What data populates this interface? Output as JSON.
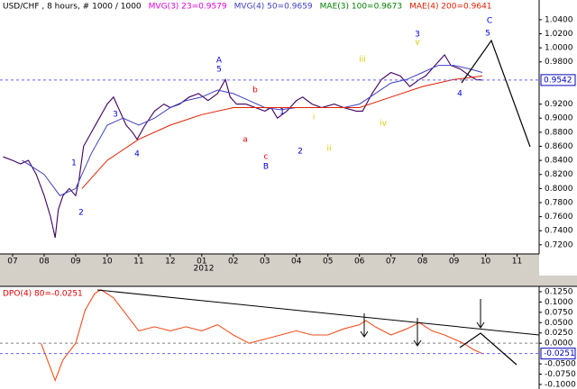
{
  "chart_data": [
    {
      "type": "line",
      "title": "USD/CHF , 8 hours, # 1000 / 1000",
      "indicators": [
        {
          "name": "MVG(3) 23=0.9579",
          "color": "#e000e0"
        },
        {
          "name": "MAE(3) 100=0.9673",
          "color": "#008000"
        }
      ],
      "xlim": [
        -0.4,
        16.7
      ],
      "xticks": [
        {
          "value": 0,
          "label": "07"
        },
        {
          "value": 1,
          "label": "08"
        },
        {
          "value": 2,
          "label": "09"
        },
        {
          "value": 3,
          "label": "10"
        },
        {
          "value": 4,
          "label": "11"
        },
        {
          "value": 5,
          "label": "12"
        },
        {
          "value": 6,
          "label": "01"
        },
        {
          "value": 7,
          "label": "02"
        },
        {
          "value": 8,
          "label": "03"
        },
        {
          "value": 9,
          "label": "04"
        },
        {
          "value": 10,
          "label": "05"
        },
        {
          "value": 11,
          "label": "06"
        },
        {
          "value": 12,
          "label": "07"
        },
        {
          "value": 13,
          "label": "08"
        },
        {
          "value": 14,
          "label": "09"
        },
        {
          "value": 15,
          "label": "10"
        },
        {
          "value": 16,
          "label": "11"
        }
      ],
      "year_label": "2012",
      "ylim": [
        0.707,
        1.068
      ],
      "yticks": [
        {
          "value": 1.04,
          "label": "1.0400"
        },
        {
          "value": 1.02,
          "label": "1.0200"
        },
        {
          "value": 1.0,
          "label": "1.0000"
        },
        {
          "value": 0.98,
          "label": "0.9800"
        },
        {
          "value": 0.92,
          "label": "0.9200"
        },
        {
          "value": 0.9,
          "label": "0.9000"
        },
        {
          "value": 0.88,
          "label": "0.8800"
        },
        {
          "value": 0.86,
          "label": "0.8600"
        },
        {
          "value": 0.84,
          "label": "0.8400"
        },
        {
          "value": 0.82,
          "label": "0.8200"
        },
        {
          "value": 0.8,
          "label": "0.8000"
        },
        {
          "value": 0.78,
          "label": "0.7800"
        },
        {
          "value": 0.76,
          "label": "0.7600"
        },
        {
          "value": 0.74,
          "label": "0.7400"
        },
        {
          "value": 0.72,
          "label": "0.7200"
        }
      ],
      "current": {
        "value": 0.9542,
        "label": "0.9542"
      },
      "series": [
        {
          "color": "#400060",
          "x": [
            -0.3,
            0,
            0.25,
            0.5,
            0.75,
            1.0,
            1.2,
            1.35,
            1.45,
            1.6,
            1.8,
            2.0,
            2.1,
            2.25,
            2.5,
            2.75,
            3.0,
            3.2,
            3.4,
            3.6,
            3.8,
            3.95,
            4.2,
            4.5,
            4.8,
            5.0,
            5.3,
            5.6,
            5.9,
            6.2,
            6.5,
            6.75,
            6.9,
            7.1,
            7.4,
            7.7,
            8.0,
            8.2,
            8.4,
            8.7,
            9.0,
            9.2,
            9.5,
            9.8,
            10.2,
            10.5,
            10.9,
            11.1,
            11.4,
            11.7,
            12.0,
            12.3,
            12.6,
            12.9,
            13.1,
            13.4,
            13.7,
            13.9,
            14.2,
            14.5,
            14.7,
            14.9
          ],
          "values": [
            0.845,
            0.84,
            0.835,
            0.84,
            0.82,
            0.79,
            0.76,
            0.73,
            0.77,
            0.79,
            0.8,
            0.79,
            0.81,
            0.86,
            0.88,
            0.9,
            0.92,
            0.93,
            0.91,
            0.89,
            0.88,
            0.87,
            0.89,
            0.91,
            0.92,
            0.915,
            0.92,
            0.93,
            0.935,
            0.925,
            0.935,
            0.955,
            0.93,
            0.92,
            0.92,
            0.915,
            0.91,
            0.915,
            0.9,
            0.91,
            0.925,
            0.93,
            0.92,
            0.915,
            0.92,
            0.915,
            0.91,
            0.91,
            0.935,
            0.955,
            0.965,
            0.96,
            0.945,
            0.955,
            0.96,
            0.975,
            0.99,
            0.975,
            0.97,
            0.96,
            0.955,
            0.9542
          ]
        },
        {
          "name": "MVG(4) 50=0.9659",
          "color": "#4040c0",
          "x": [
            0.3,
            1,
            1.5,
            2,
            2.5,
            3,
            3.5,
            4,
            4.5,
            5,
            5.5,
            6,
            6.5,
            7,
            7.5,
            8,
            8.5,
            9,
            9.5,
            10,
            10.5,
            11,
            11.5,
            12,
            12.5,
            13,
            13.5,
            14,
            14.5,
            14.9
          ],
          "values": [
            0.84,
            0.82,
            0.79,
            0.8,
            0.85,
            0.89,
            0.9,
            0.89,
            0.9,
            0.915,
            0.925,
            0.93,
            0.94,
            0.935,
            0.925,
            0.915,
            0.912,
            0.915,
            0.915,
            0.915,
            0.915,
            0.92,
            0.935,
            0.95,
            0.955,
            0.965,
            0.975,
            0.975,
            0.97,
            0.965
          ]
        },
        {
          "name": "MAE(4) 200=0.9641",
          "color": "#e02000",
          "x": [
            2.2,
            3,
            4,
            5,
            6,
            7,
            8,
            9,
            10,
            11,
            12,
            13,
            14,
            14.9
          ],
          "values": [
            0.8,
            0.84,
            0.87,
            0.89,
            0.905,
            0.915,
            0.915,
            0.915,
            0.915,
            0.915,
            0.93,
            0.945,
            0.955,
            0.96
          ]
        }
      ],
      "annotations": [
        "1",
        "2",
        "3",
        "4",
        "A",
        "5",
        "a",
        "b",
        "c",
        "B",
        "1",
        "2",
        "i",
        "ii",
        "iii",
        "iv",
        "3",
        "v",
        "4",
        "C",
        "5"
      ]
    },
    {
      "type": "line",
      "title": "DPO(4) 80=-0.0251",
      "xlim": [
        -0.4,
        16.7
      ],
      "ylim": [
        -0.111,
        0.138
      ],
      "yticks": [
        {
          "value": 0.125,
          "label": "0.1250"
        },
        {
          "value": 0.1,
          "label": "0.1000"
        },
        {
          "value": 0.075,
          "label": "0.0750"
        },
        {
          "value": 0.05,
          "label": "0.0500"
        },
        {
          "value": 0.025,
          "label": "0.0250"
        },
        {
          "value": 0,
          "label": "0.0000"
        },
        {
          "value": -0.05,
          "label": "-0.0500"
        },
        {
          "value": -0.075,
          "label": "-0.0750"
        },
        {
          "value": -0.1,
          "label": "-0.1000"
        }
      ],
      "current": {
        "value": -0.0251,
        "label": "-0.0251"
      },
      "series": [
        {
          "color": "#f05020",
          "x": [
            0.9,
            1.2,
            1.35,
            1.6,
            2,
            2.3,
            2.6,
            2.8,
            3.2,
            3.6,
            4,
            4.5,
            5,
            5.5,
            6,
            6.5,
            7,
            7.5,
            8,
            8.5,
            9,
            9.5,
            10,
            10.5,
            11,
            11.2,
            11.5,
            12,
            12.5,
            12.9,
            13.3,
            13.7,
            14,
            14.3,
            14.6,
            14.9
          ],
          "values": [
            0.0,
            -0.06,
            -0.09,
            -0.04,
            0.0,
            0.08,
            0.12,
            0.13,
            0.11,
            0.07,
            0.03,
            0.04,
            0.03,
            0.04,
            0.03,
            0.045,
            0.02,
            0.0,
            0.01,
            0.02,
            0.03,
            0.02,
            0.02,
            0.035,
            0.045,
            0.055,
            0.04,
            0.02,
            0.035,
            0.05,
            0.03,
            0.02,
            0.01,
            0.0,
            -0.015,
            -0.0251
          ]
        }
      ]
    }
  ]
}
